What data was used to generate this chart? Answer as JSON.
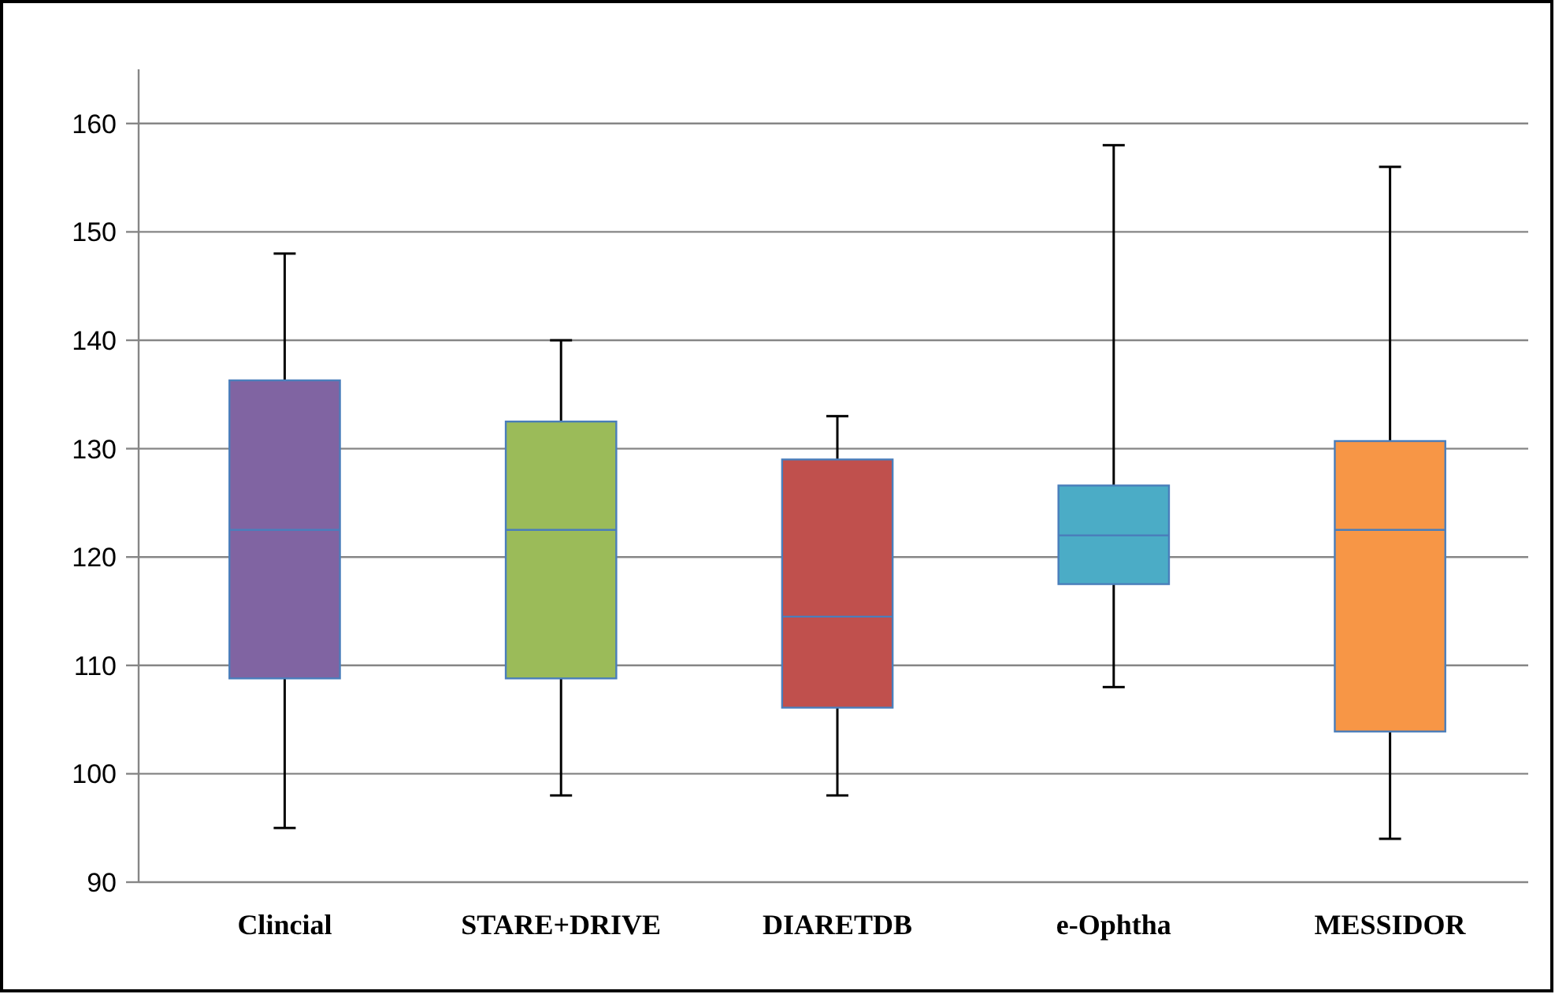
{
  "chart_data": {
    "type": "box",
    "categories": [
      "Clincial",
      "STARE+DRIVE",
      "DIARETDB",
      "e-Ophtha",
      "MESSIDOR"
    ],
    "colors": [
      "#8064a2",
      "#9bbb59",
      "#c0504d",
      "#4bacc6",
      "#f79646"
    ],
    "boxes": [
      {
        "low": 95,
        "q1": 108.8,
        "median": 122.5,
        "q3": 136.3,
        "high": 148
      },
      {
        "low": 98,
        "q1": 108.8,
        "median": 122.5,
        "q3": 132.5,
        "high": 140
      },
      {
        "low": 98,
        "q1": 106.1,
        "median": 114.5,
        "q3": 129,
        "high": 133
      },
      {
        "low": 108,
        "q1": 117.5,
        "median": 122,
        "q3": 126.6,
        "high": 158
      },
      {
        "low": 94,
        "q1": 103.9,
        "median": 122.5,
        "q3": 130.7,
        "high": 156
      }
    ],
    "ylim": [
      90,
      165
    ],
    "yticks": [
      90,
      100,
      110,
      120,
      130,
      140,
      150,
      160
    ],
    "grid": "y"
  }
}
